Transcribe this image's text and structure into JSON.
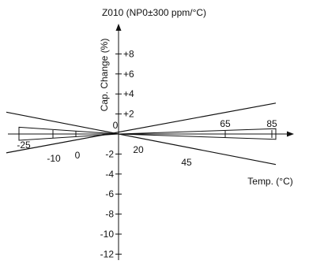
{
  "chart_data": {
    "type": "line",
    "title": "Z010 (NP0±300 ppm/°C)",
    "xlabel": "Temp. (°C)",
    "ylabel": "Cap. Change (%)",
    "xlim": [
      -25,
      85
    ],
    "ylim": [
      -12,
      8
    ],
    "reference_temperature": 20,
    "y_ticks": [
      {
        "value": 8,
        "label": "+8"
      },
      {
        "value": 6,
        "label": "+6"
      },
      {
        "value": 4,
        "label": "+4"
      },
      {
        "value": 2,
        "label": "+2"
      },
      {
        "value": -2,
        "label": "-2"
      },
      {
        "value": -4,
        "label": "-4"
      },
      {
        "value": -6,
        "label": "-6"
      },
      {
        "value": -8,
        "label": "-8"
      },
      {
        "value": -10,
        "label": "-10"
      },
      {
        "value": -12,
        "label": "-12"
      }
    ],
    "x_ticks": [
      {
        "value": -25,
        "label": "-25"
      },
      {
        "value": -10,
        "label": "-10"
      },
      {
        "value": 0,
        "label": "0"
      },
      {
        "value": 20,
        "label": "20"
      },
      {
        "value": 45,
        "label": "45"
      },
      {
        "value": 65,
        "label": "65"
      },
      {
        "value": 85,
        "label": "85"
      }
    ],
    "origin_label": "0",
    "series": [
      {
        "x": [
          -25,
          85
        ],
        "y": [
          2.1,
          -2.1
        ]
      },
      {
        "x": [
          -25,
          85
        ],
        "y": [
          -1.8,
          2.3
        ]
      },
      {
        "x": [
          -25,
          85
        ],
        "y": [
          0.6,
          -0.45
        ]
      },
      {
        "x": [
          -25,
          85
        ],
        "y": [
          -0.55,
          0.45
        ]
      }
    ]
  }
}
